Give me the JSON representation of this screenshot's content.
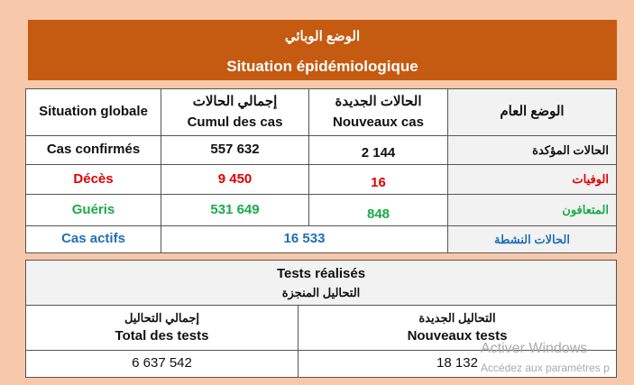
{
  "banner": {
    "title_ar": "الوضع الوبائي",
    "title_fr": "Situation épidémiologique"
  },
  "situation_table": {
    "headers": {
      "global_fr": "Situation globale",
      "cumul_ar": "إجمالي الحالات",
      "cumul_fr": "Cumul des cas",
      "new_ar": "الحالات الجديدة",
      "new_fr": "Nouveaux cas",
      "global_ar": "الوضع العام"
    },
    "rows": [
      {
        "label_fr": "Cas confirmés",
        "cumul": "557 632",
        "new": "2 144",
        "label_ar": "الحالات المؤكدة"
      },
      {
        "label_fr": "Décès",
        "cumul": "9 450",
        "new": "16",
        "label_ar": "الوفيات"
      },
      {
        "label_fr": "Guéris",
        "cumul": "531 649",
        "new": "848",
        "label_ar": "المتعافون"
      }
    ],
    "active": {
      "label_fr": "Cas actifs",
      "value": "16 533",
      "label_ar": "الحالات النشطة"
    }
  },
  "tests_table": {
    "title_fr": "Tests réalisés",
    "title_ar": "التحاليل المنجزة",
    "total_ar": "إجمالي التحاليل",
    "total_fr": "Total des tests",
    "new_ar": "التحاليل الجديدة",
    "new_fr": "Nouveaux tests",
    "total_value": "6 637 542",
    "new_value": "18 132"
  },
  "watermark": {
    "line1": "Activer Windows",
    "line2": "Accédez aux paramètres p"
  },
  "colors": {
    "banner": "#c55a11",
    "background": "#f7c9aa",
    "deaths": "#e00000",
    "recovered": "#1aaa4a",
    "active": "#1f6fb7"
  }
}
